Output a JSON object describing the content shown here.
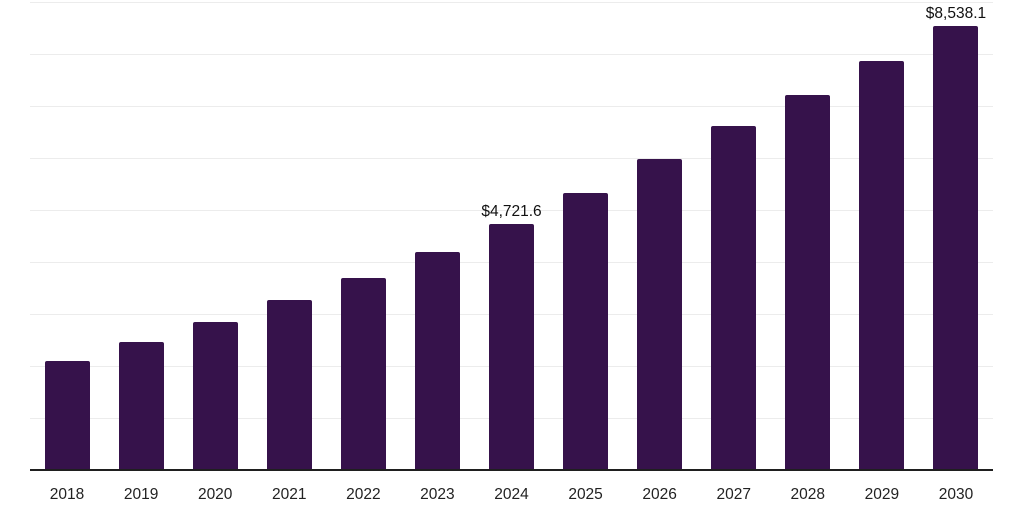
{
  "chart_data": {
    "type": "bar",
    "title": "",
    "xlabel": "",
    "ylabel": "",
    "categories": [
      "2018",
      "2019",
      "2020",
      "2021",
      "2022",
      "2023",
      "2024",
      "2025",
      "2026",
      "2027",
      "2028",
      "2029",
      "2030"
    ],
    "values": [
      2080,
      2450,
      2830,
      3260,
      3680,
      4190,
      4721.6,
      5320,
      5970,
      6600,
      7200,
      7860,
      8538.1
    ],
    "data_labels": [
      "",
      "",
      "",
      "",
      "",
      "",
      "$4,721.6",
      "",
      "",
      "",
      "",
      "",
      "$8,538.1"
    ],
    "ylim": [
      0,
      9000
    ],
    "gridline_step": 1000,
    "grid": "horizontal",
    "legend": "none",
    "colors": {
      "bar": "#36124B",
      "axis": "#1f1f1f",
      "gridline": "#ececec",
      "data_label": "#111111",
      "tick_label": "#222222",
      "background": "#ffffff"
    }
  }
}
